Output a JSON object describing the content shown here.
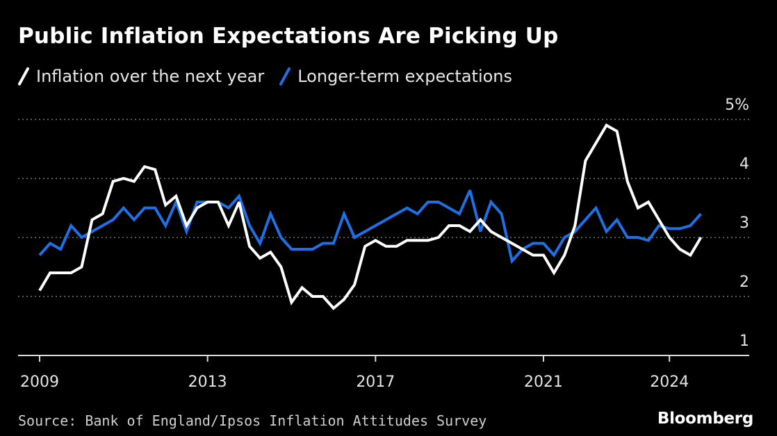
{
  "title": "Public Inflation Expectations Are Picking Up",
  "source": "Source: Bank of England/Ipsos Inflation Attitudes Survey",
  "brand": "Bloomberg",
  "chart_data": {
    "type": "line",
    "title": "Public Inflation Expectations Are Picking Up",
    "xlabel": "",
    "ylabel": "",
    "xlim": [
      2009,
      2025.9
    ],
    "ylim": [
      1,
      5
    ],
    "x_ticks": [
      {
        "value": 2009,
        "label": "2009"
      },
      {
        "value": 2013,
        "label": "2013"
      },
      {
        "value": 2017,
        "label": "2017"
      },
      {
        "value": 2021,
        "label": "2021"
      },
      {
        "value": 2024,
        "label": "2024"
      }
    ],
    "y_ticks": [
      {
        "value": 5,
        "label": "5%"
      },
      {
        "value": 4,
        "label": "4"
      },
      {
        "value": 3,
        "label": "3"
      },
      {
        "value": 2,
        "label": "2"
      },
      {
        "value": 1,
        "label": "1"
      }
    ],
    "grid": "horizontal dotted",
    "legend_position": "top-left",
    "colors": {
      "background": "#000000",
      "next_year": "#ffffff",
      "longer_term": "#1f6fe5",
      "grid": "#777777"
    },
    "series": [
      {
        "name": "Inflation over the next year",
        "color": "#ffffff",
        "points": [
          [
            2009.0,
            2.1
          ],
          [
            2009.25,
            2.4
          ],
          [
            2009.5,
            2.4
          ],
          [
            2009.75,
            2.4
          ],
          [
            2010.0,
            2.5
          ],
          [
            2010.25,
            3.3
          ],
          [
            2010.5,
            3.4
          ],
          [
            2010.75,
            3.95
          ],
          [
            2011.0,
            4.0
          ],
          [
            2011.25,
            3.95
          ],
          [
            2011.5,
            4.2
          ],
          [
            2011.75,
            4.15
          ],
          [
            2012.0,
            3.55
          ],
          [
            2012.25,
            3.7
          ],
          [
            2012.5,
            3.2
          ],
          [
            2012.75,
            3.5
          ],
          [
            2013.0,
            3.6
          ],
          [
            2013.25,
            3.6
          ],
          [
            2013.5,
            3.2
          ],
          [
            2013.75,
            3.6
          ],
          [
            2014.0,
            2.85
          ],
          [
            2014.25,
            2.65
          ],
          [
            2014.5,
            2.75
          ],
          [
            2014.75,
            2.5
          ],
          [
            2015.0,
            1.9
          ],
          [
            2015.25,
            2.15
          ],
          [
            2015.5,
            2.0
          ],
          [
            2015.75,
            2.0
          ],
          [
            2016.0,
            1.8
          ],
          [
            2016.25,
            1.95
          ],
          [
            2016.5,
            2.2
          ],
          [
            2016.75,
            2.85
          ],
          [
            2017.0,
            2.95
          ],
          [
            2017.25,
            2.85
          ],
          [
            2017.5,
            2.85
          ],
          [
            2017.75,
            2.95
          ],
          [
            2018.0,
            2.95
          ],
          [
            2018.25,
            2.95
          ],
          [
            2018.5,
            3.0
          ],
          [
            2018.75,
            3.2
          ],
          [
            2019.0,
            3.2
          ],
          [
            2019.25,
            3.1
          ],
          [
            2019.5,
            3.3
          ],
          [
            2019.75,
            3.1
          ],
          [
            2020.0,
            3.0
          ],
          [
            2020.25,
            2.9
          ],
          [
            2020.5,
            2.8
          ],
          [
            2020.75,
            2.7
          ],
          [
            2021.0,
            2.7
          ],
          [
            2021.25,
            2.4
          ],
          [
            2021.5,
            2.7
          ],
          [
            2021.75,
            3.2
          ],
          [
            2022.0,
            4.3
          ],
          [
            2022.25,
            4.6
          ],
          [
            2022.5,
            4.9
          ],
          [
            2022.75,
            4.8
          ],
          [
            2023.0,
            3.95
          ],
          [
            2023.25,
            3.5
          ],
          [
            2023.5,
            3.6
          ],
          [
            2023.75,
            3.3
          ],
          [
            2024.0,
            3.0
          ],
          [
            2024.25,
            2.8
          ],
          [
            2024.5,
            2.7
          ],
          [
            2024.75,
            3.0
          ]
        ]
      },
      {
        "name": "Longer-term expectations",
        "color": "#1f6fe5",
        "points": [
          [
            2009.0,
            2.7
          ],
          [
            2009.25,
            2.9
          ],
          [
            2009.5,
            2.8
          ],
          [
            2009.75,
            3.2
          ],
          [
            2010.0,
            3.0
          ],
          [
            2010.25,
            3.1
          ],
          [
            2010.5,
            3.2
          ],
          [
            2010.75,
            3.3
          ],
          [
            2011.0,
            3.5
          ],
          [
            2011.25,
            3.3
          ],
          [
            2011.5,
            3.5
          ],
          [
            2011.75,
            3.5
          ],
          [
            2012.0,
            3.2
          ],
          [
            2012.25,
            3.6
          ],
          [
            2012.5,
            3.1
          ],
          [
            2012.75,
            3.6
          ],
          [
            2013.0,
            3.6
          ],
          [
            2013.25,
            3.6
          ],
          [
            2013.5,
            3.5
          ],
          [
            2013.75,
            3.7
          ],
          [
            2014.0,
            3.2
          ],
          [
            2014.25,
            2.9
          ],
          [
            2014.5,
            3.4
          ],
          [
            2014.75,
            3.0
          ],
          [
            2015.0,
            2.8
          ],
          [
            2015.25,
            2.8
          ],
          [
            2015.5,
            2.8
          ],
          [
            2015.75,
            2.9
          ],
          [
            2016.0,
            2.9
          ],
          [
            2016.25,
            3.4
          ],
          [
            2016.5,
            3.0
          ],
          [
            2016.75,
            3.1
          ],
          [
            2017.0,
            3.2
          ],
          [
            2017.25,
            3.3
          ],
          [
            2017.5,
            3.4
          ],
          [
            2017.75,
            3.5
          ],
          [
            2018.0,
            3.4
          ],
          [
            2018.25,
            3.6
          ],
          [
            2018.5,
            3.6
          ],
          [
            2018.75,
            3.5
          ],
          [
            2019.0,
            3.4
          ],
          [
            2019.25,
            3.8
          ],
          [
            2019.5,
            3.1
          ],
          [
            2019.75,
            3.6
          ],
          [
            2020.0,
            3.4
          ],
          [
            2020.25,
            2.6
          ],
          [
            2020.5,
            2.8
          ],
          [
            2020.75,
            2.9
          ],
          [
            2021.0,
            2.9
          ],
          [
            2021.25,
            2.7
          ],
          [
            2021.5,
            3.0
          ],
          [
            2021.75,
            3.1
          ],
          [
            2022.0,
            3.3
          ],
          [
            2022.25,
            3.5
          ],
          [
            2022.5,
            3.1
          ],
          [
            2022.75,
            3.3
          ],
          [
            2023.0,
            3.0
          ],
          [
            2023.25,
            3.0
          ],
          [
            2023.5,
            2.95
          ],
          [
            2023.75,
            3.2
          ],
          [
            2024.0,
            3.15
          ],
          [
            2024.25,
            3.15
          ],
          [
            2024.5,
            3.2
          ],
          [
            2024.75,
            3.4
          ]
        ]
      }
    ]
  }
}
